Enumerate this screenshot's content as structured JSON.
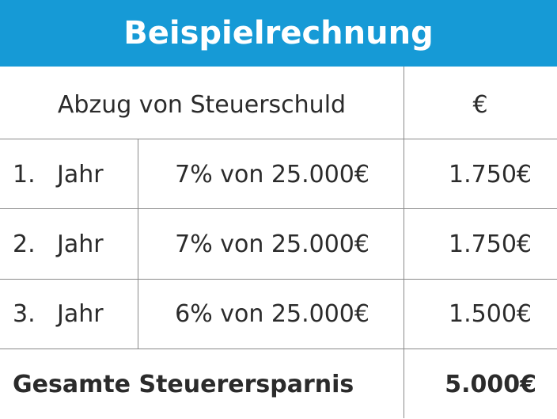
{
  "header": {
    "title": "Beispielrechnung"
  },
  "table": {
    "columns": [
      "Abzug von Steuerschuld",
      "€"
    ],
    "rows": [
      [
        "1.",
        "Jahr",
        "7% von 25.000€",
        "1.750€"
      ],
      [
        "2.",
        "Jahr",
        "7% von 25.000€",
        "1.750€"
      ],
      [
        "3.",
        "Jahr",
        "6% von 25.000€",
        "1.500€"
      ]
    ],
    "total": [
      "Gesamte Steuerersparnis",
      "5.000€"
    ]
  }
}
